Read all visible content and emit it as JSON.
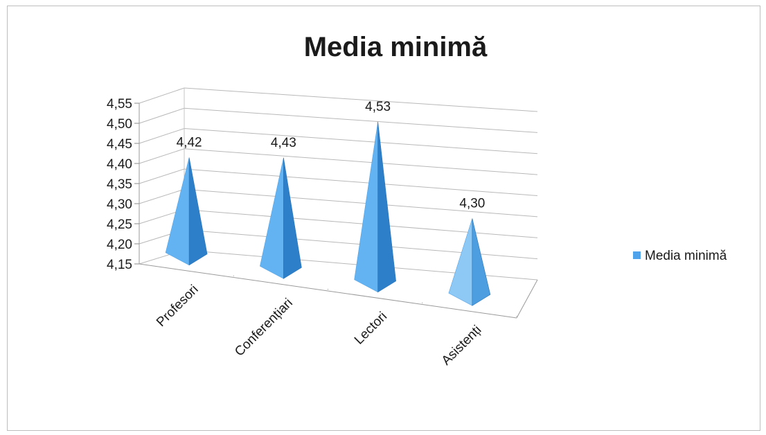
{
  "chart_data": {
    "type": "bar",
    "shape": "pyramid-3d",
    "title": "Media minimă",
    "categories": [
      "Profesori",
      "Conferențiari",
      "Lectori",
      "Asistenți"
    ],
    "series": [
      {
        "name": "Media minimă",
        "values": [
          4.42,
          4.43,
          4.53,
          4.3
        ]
      }
    ],
    "data_labels": [
      "4,42",
      "4,43",
      "4,53",
      "4,30"
    ],
    "y_ticks": [
      "4,15",
      "4,20",
      "4,25",
      "4,30",
      "4,35",
      "4,40",
      "4,45",
      "4,50",
      "4,55"
    ],
    "ylim": [
      4.15,
      4.55
    ],
    "xlabel": "",
    "ylabel": "",
    "grid": true,
    "legend_position": "right",
    "colors": {
      "face_light": "#63b2f2",
      "face_dark": "#2d7fc9",
      "face_last_light": "#8ec8f5",
      "face_last_dark": "#4c9ee0",
      "legend_swatch": "#4fa3ea",
      "gridline": "#b8b8b8",
      "text": "#1a1a1a"
    }
  }
}
